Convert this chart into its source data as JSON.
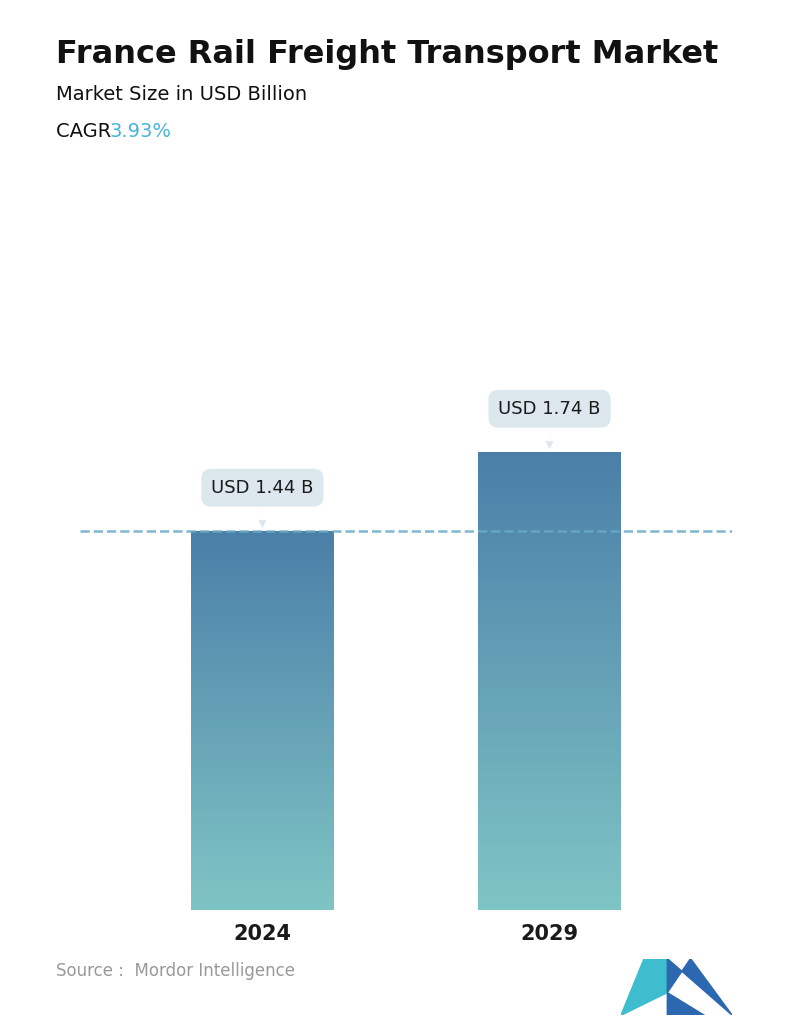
{
  "title": "France Rail Freight Transport Market",
  "subtitle": "Market Size in USD Billion",
  "cagr_label": "CAGR ",
  "cagr_value": "3.93%",
  "cagr_color": "#4ab4d8",
  "categories": [
    "2024",
    "2029"
  ],
  "values": [
    1.44,
    1.74
  ],
  "bar_labels": [
    "USD 1.44 B",
    "USD 1.74 B"
  ],
  "bar_color_top": "#4a7fa8",
  "bar_color_bottom": "#7fc4c4",
  "dashed_line_color": "#6aaac8",
  "annotation_bg_color": "#dde8ee",
  "annotation_text_color": "#1a1a1a",
  "source_text": "Source :  Mordor Intelligence",
  "source_color": "#999999",
  "background_color": "#ffffff",
  "title_fontsize": 23,
  "subtitle_fontsize": 14,
  "cagr_fontsize": 14,
  "bar_label_fontsize": 13,
  "tick_fontsize": 15,
  "source_fontsize": 12,
  "ylim": [
    0,
    2.2
  ],
  "bar_width": 0.22
}
